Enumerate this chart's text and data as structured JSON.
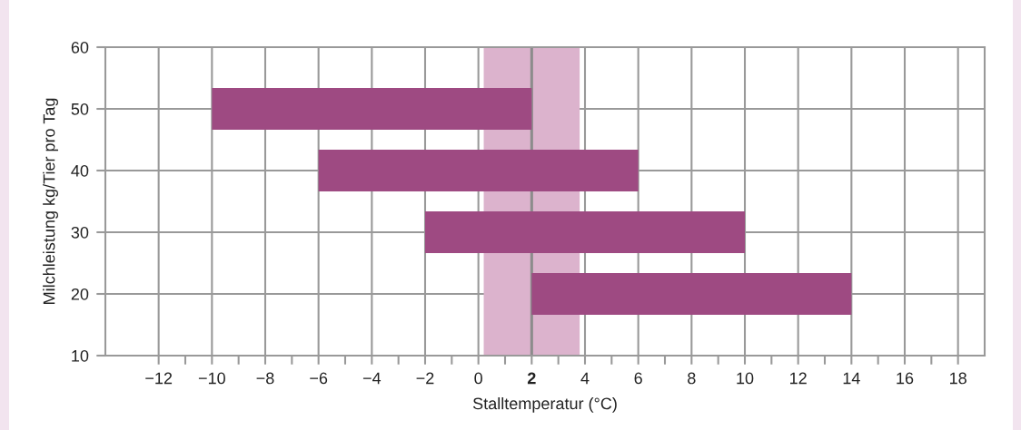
{
  "chart_data": {
    "type": "bar",
    "orientation": "horizontal",
    "xlabel": "Stalltemperatur (°C)",
    "ylabel": "Milchleistung kg/Tier pro Tag",
    "x": [
      50,
      40,
      30,
      20
    ],
    "base": [
      -10,
      -6,
      -2,
      2
    ],
    "values": [
      12,
      12,
      12,
      12
    ],
    "color": "#9e4a82",
    "xlim": [
      -14,
      19
    ],
    "xticks": [
      -12,
      {
        "value": -11,
        "label": null
      },
      -10,
      {
        "value": -9,
        "label": null
      },
      -8,
      {
        "value": -7,
        "label": null
      },
      -6,
      {
        "value": -5,
        "label": null
      },
      -4,
      {
        "value": -3,
        "label": null
      },
      -2,
      {
        "value": -1,
        "label": null
      },
      0,
      {
        "value": 1,
        "label": null
      },
      2,
      {
        "value": 3,
        "label": null
      },
      4,
      {
        "value": 5,
        "label": null
      },
      6,
      {
        "value": 7,
        "label": null
      },
      8,
      {
        "value": 9,
        "label": null
      },
      10,
      {
        "value": 11,
        "label": null
      },
      12,
      {
        "value": 13,
        "label": null
      },
      14,
      {
        "value": 15,
        "label": null
      },
      16,
      {
        "value": 17,
        "label": null
      },
      18
    ],
    "ylim": [
      10,
      60
    ],
    "yticks": [
      10,
      20,
      30,
      40,
      50,
      60
    ],
    "grid": true,
    "bands": [
      {
        "axis": "x",
        "from": 0.2,
        "to": 3.8,
        "color": "#dcb3cd"
      }
    ],
    "ref_lines": [
      {
        "axis": "x",
        "value": 2,
        "color": "#8c8c8c"
      }
    ]
  }
}
